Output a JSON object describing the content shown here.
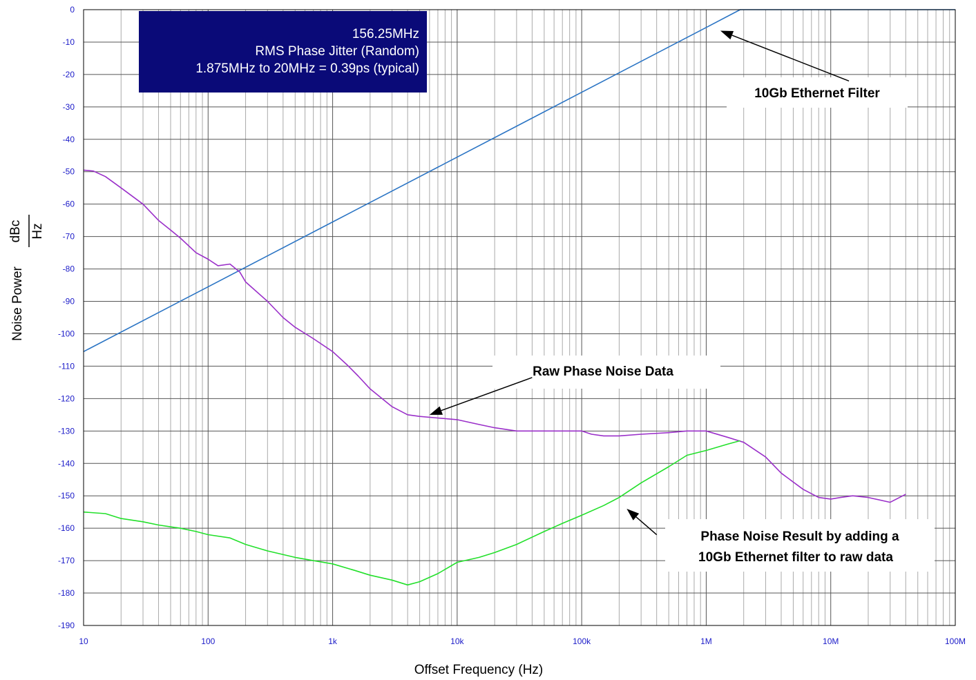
{
  "chart_data": {
    "type": "line",
    "xscale": "log",
    "xlabel": "Offset Frequency (Hz)",
    "ylabel": "Noise Power",
    "yunit_numerator": "dBc",
    "yunit_denominator": "Hz",
    "xlim": [
      10,
      100000000
    ],
    "ylim": [
      -190,
      0
    ],
    "grid": true,
    "x_tick_values": [
      10,
      100,
      1000,
      10000,
      100000,
      1000000,
      10000000,
      100000000
    ],
    "x_tick_labels": [
      "10",
      "100",
      "1k",
      "10k",
      "100k",
      "1M",
      "10M",
      "100M"
    ],
    "y_ticks": [
      0,
      -10,
      -20,
      -30,
      -40,
      -50,
      -60,
      -70,
      -80,
      -90,
      -100,
      -110,
      -120,
      -130,
      -140,
      -150,
      -160,
      -170,
      -180,
      -190
    ],
    "info_box": {
      "lines": [
        "156.25MHz",
        "RMS Phase Jitter (Random)",
        "1.875MHz to 20MHz = 0.39ps (typical)"
      ],
      "background": "#0a0a78"
    },
    "series": [
      {
        "key": "filter",
        "color": "#2a74c4",
        "x": [
          10,
          100,
          1000,
          10000,
          100000,
          1000000,
          1875000,
          100000000
        ],
        "y": [
          -105.5,
          -85.5,
          -65.5,
          -45.5,
          -25.5,
          -5.5,
          0,
          0
        ]
      },
      {
        "key": "raw",
        "color": "#9a2fc9",
        "x": [
          10,
          12,
          15,
          20,
          30,
          40,
          50,
          60,
          80,
          100,
          120,
          150,
          180,
          200,
          300,
          400,
          500,
          700,
          1000,
          1300,
          1600,
          2000,
          3000,
          4000,
          5000,
          7000,
          10000,
          15000,
          20000,
          30000,
          50000,
          70000,
          90000,
          100000,
          120000,
          150000,
          200000,
          300000,
          500000,
          700000,
          1000000,
          1500000,
          2000000,
          3000000,
          4000000,
          6000000,
          8000000,
          10000000,
          12000000,
          15000000,
          20000000,
          30000000,
          40000000
        ],
        "y": [
          -49.5,
          -49.8,
          -51.5,
          -55,
          -60,
          -65,
          -68,
          -70.5,
          -75,
          -77,
          -79,
          -78.5,
          -81,
          -84,
          -90,
          -95,
          -98,
          -101.5,
          -105.5,
          -109.5,
          -113,
          -117,
          -122.5,
          -125,
          -125.5,
          -126,
          -126.5,
          -128,
          -129,
          -130,
          -130,
          -130,
          -130,
          -130,
          -131,
          -131.5,
          -131.5,
          -131,
          -130.5,
          -130,
          -130,
          -132,
          -133.5,
          -138,
          -143,
          -148,
          -150.5,
          -151,
          -150.5,
          -150,
          -150.5,
          -152,
          -149.5
        ]
      },
      {
        "key": "result",
        "color": "#22e02a",
        "x": [
          10,
          15,
          20,
          30,
          40,
          60,
          80,
          100,
          150,
          200,
          300,
          500,
          700,
          1000,
          1500,
          2000,
          3000,
          4000,
          5000,
          7000,
          10000,
          15000,
          20000,
          30000,
          50000,
          70000,
          100000,
          150000,
          200000,
          300000,
          500000,
          700000,
          1000000,
          1500000,
          1875000
        ],
        "y": [
          -155,
          -155.5,
          -157,
          -158,
          -159,
          -160,
          -161,
          -162,
          -163,
          -165,
          -167,
          -169,
          -170,
          -171,
          -173,
          -174.5,
          -176,
          -177.5,
          -176.5,
          -174,
          -170.5,
          -169,
          -167.5,
          -165,
          -161,
          -158.5,
          -156,
          -153,
          -150.5,
          -146,
          -141,
          -137.5,
          -136,
          -134,
          -133
        ]
      }
    ],
    "annotations": [
      {
        "lines": [
          "10Gb Ethernet Filter"
        ],
        "arrow_from": [
          14000000,
          -22
        ],
        "arrow_to": [
          1300000,
          -6.5
        ]
      },
      {
        "lines": [
          "Raw Phase Noise Data"
        ],
        "arrow_from": [
          40000,
          -113.5
        ],
        "arrow_to": [
          6000,
          -125
        ]
      },
      {
        "lines": [
          "Phase Noise Result by adding a",
          "10Gb Ethernet filter to raw data"
        ],
        "arrow_from": [
          400000,
          -162
        ],
        "arrow_to": [
          230000,
          -154
        ]
      }
    ]
  }
}
